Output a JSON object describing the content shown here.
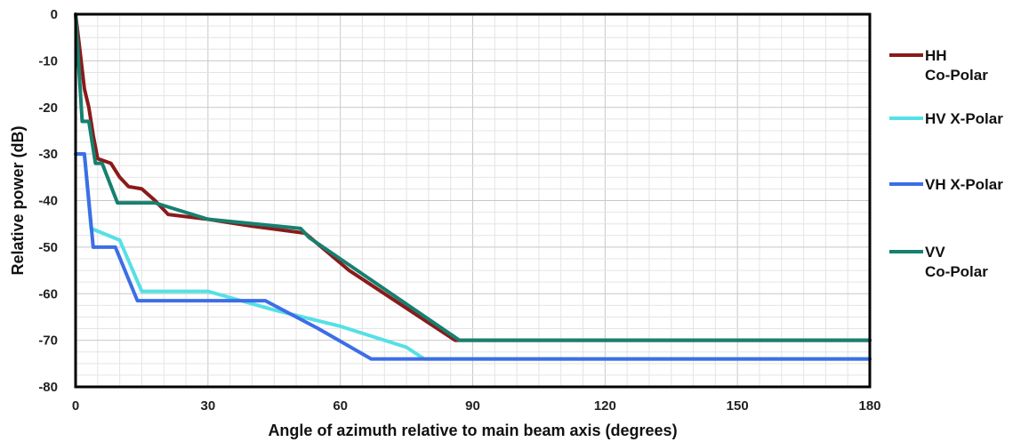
{
  "chart_data": {
    "type": "line",
    "title": "",
    "xlabel": "Angle of azimuth relative to main beam axis (degrees)",
    "ylabel": "Relative power (dB)",
    "xlim": [
      0,
      180
    ],
    "ylim": [
      -80,
      0
    ],
    "xticks": [
      0,
      30,
      60,
      90,
      120,
      150,
      180
    ],
    "yticks": [
      0,
      -10,
      -20,
      -30,
      -40,
      -50,
      -60,
      -70,
      -80
    ],
    "grid": true,
    "legend_position": "right",
    "series": [
      {
        "name_lines": [
          "HH",
          "Co-Polar"
        ],
        "color": "#8b1a1a",
        "points": [
          [
            0,
            0
          ],
          [
            1,
            -8
          ],
          [
            2,
            -16
          ],
          [
            3,
            -20
          ],
          [
            4,
            -26
          ],
          [
            5,
            -31
          ],
          [
            8,
            -32
          ],
          [
            10,
            -35
          ],
          [
            12,
            -37
          ],
          [
            15,
            -37.5
          ],
          [
            18,
            -40
          ],
          [
            21,
            -43
          ],
          [
            30,
            -44
          ],
          [
            40,
            -45.5
          ],
          [
            52,
            -47
          ],
          [
            62,
            -55
          ],
          [
            74,
            -62.5
          ],
          [
            86,
            -70
          ],
          [
            180,
            -70
          ]
        ]
      },
      {
        "name_lines": [
          "HV X-Polar"
        ],
        "color": "#55e0e6",
        "points": [
          [
            0,
            -30
          ],
          [
            2,
            -30
          ],
          [
            3.5,
            -46
          ],
          [
            10,
            -48.5
          ],
          [
            15,
            -59.5
          ],
          [
            30,
            -59.5
          ],
          [
            45,
            -63.5
          ],
          [
            60,
            -67
          ],
          [
            75,
            -71.5
          ],
          [
            79,
            -74
          ],
          [
            180,
            -74
          ]
        ]
      },
      {
        "name_lines": [
          "VH X-Polar"
        ],
        "color": "#3d6ee6",
        "points": [
          [
            0,
            -30
          ],
          [
            2,
            -30
          ],
          [
            4,
            -50
          ],
          [
            9,
            -50
          ],
          [
            14,
            -61.5
          ],
          [
            43,
            -61.5
          ],
          [
            55,
            -67.5
          ],
          [
            67,
            -74
          ],
          [
            180,
            -74
          ]
        ]
      },
      {
        "name_lines": [
          "VV",
          "Co-Polar"
        ],
        "color": "#16806f",
        "points": [
          [
            0,
            0
          ],
          [
            1.5,
            -23
          ],
          [
            3,
            -23
          ],
          [
            4.5,
            -32
          ],
          [
            6,
            -32
          ],
          [
            9.5,
            -40.5
          ],
          [
            18,
            -40.5
          ],
          [
            30,
            -44
          ],
          [
            51,
            -46
          ],
          [
            53,
            -48
          ],
          [
            87,
            -70
          ],
          [
            180,
            -70
          ]
        ]
      }
    ]
  }
}
